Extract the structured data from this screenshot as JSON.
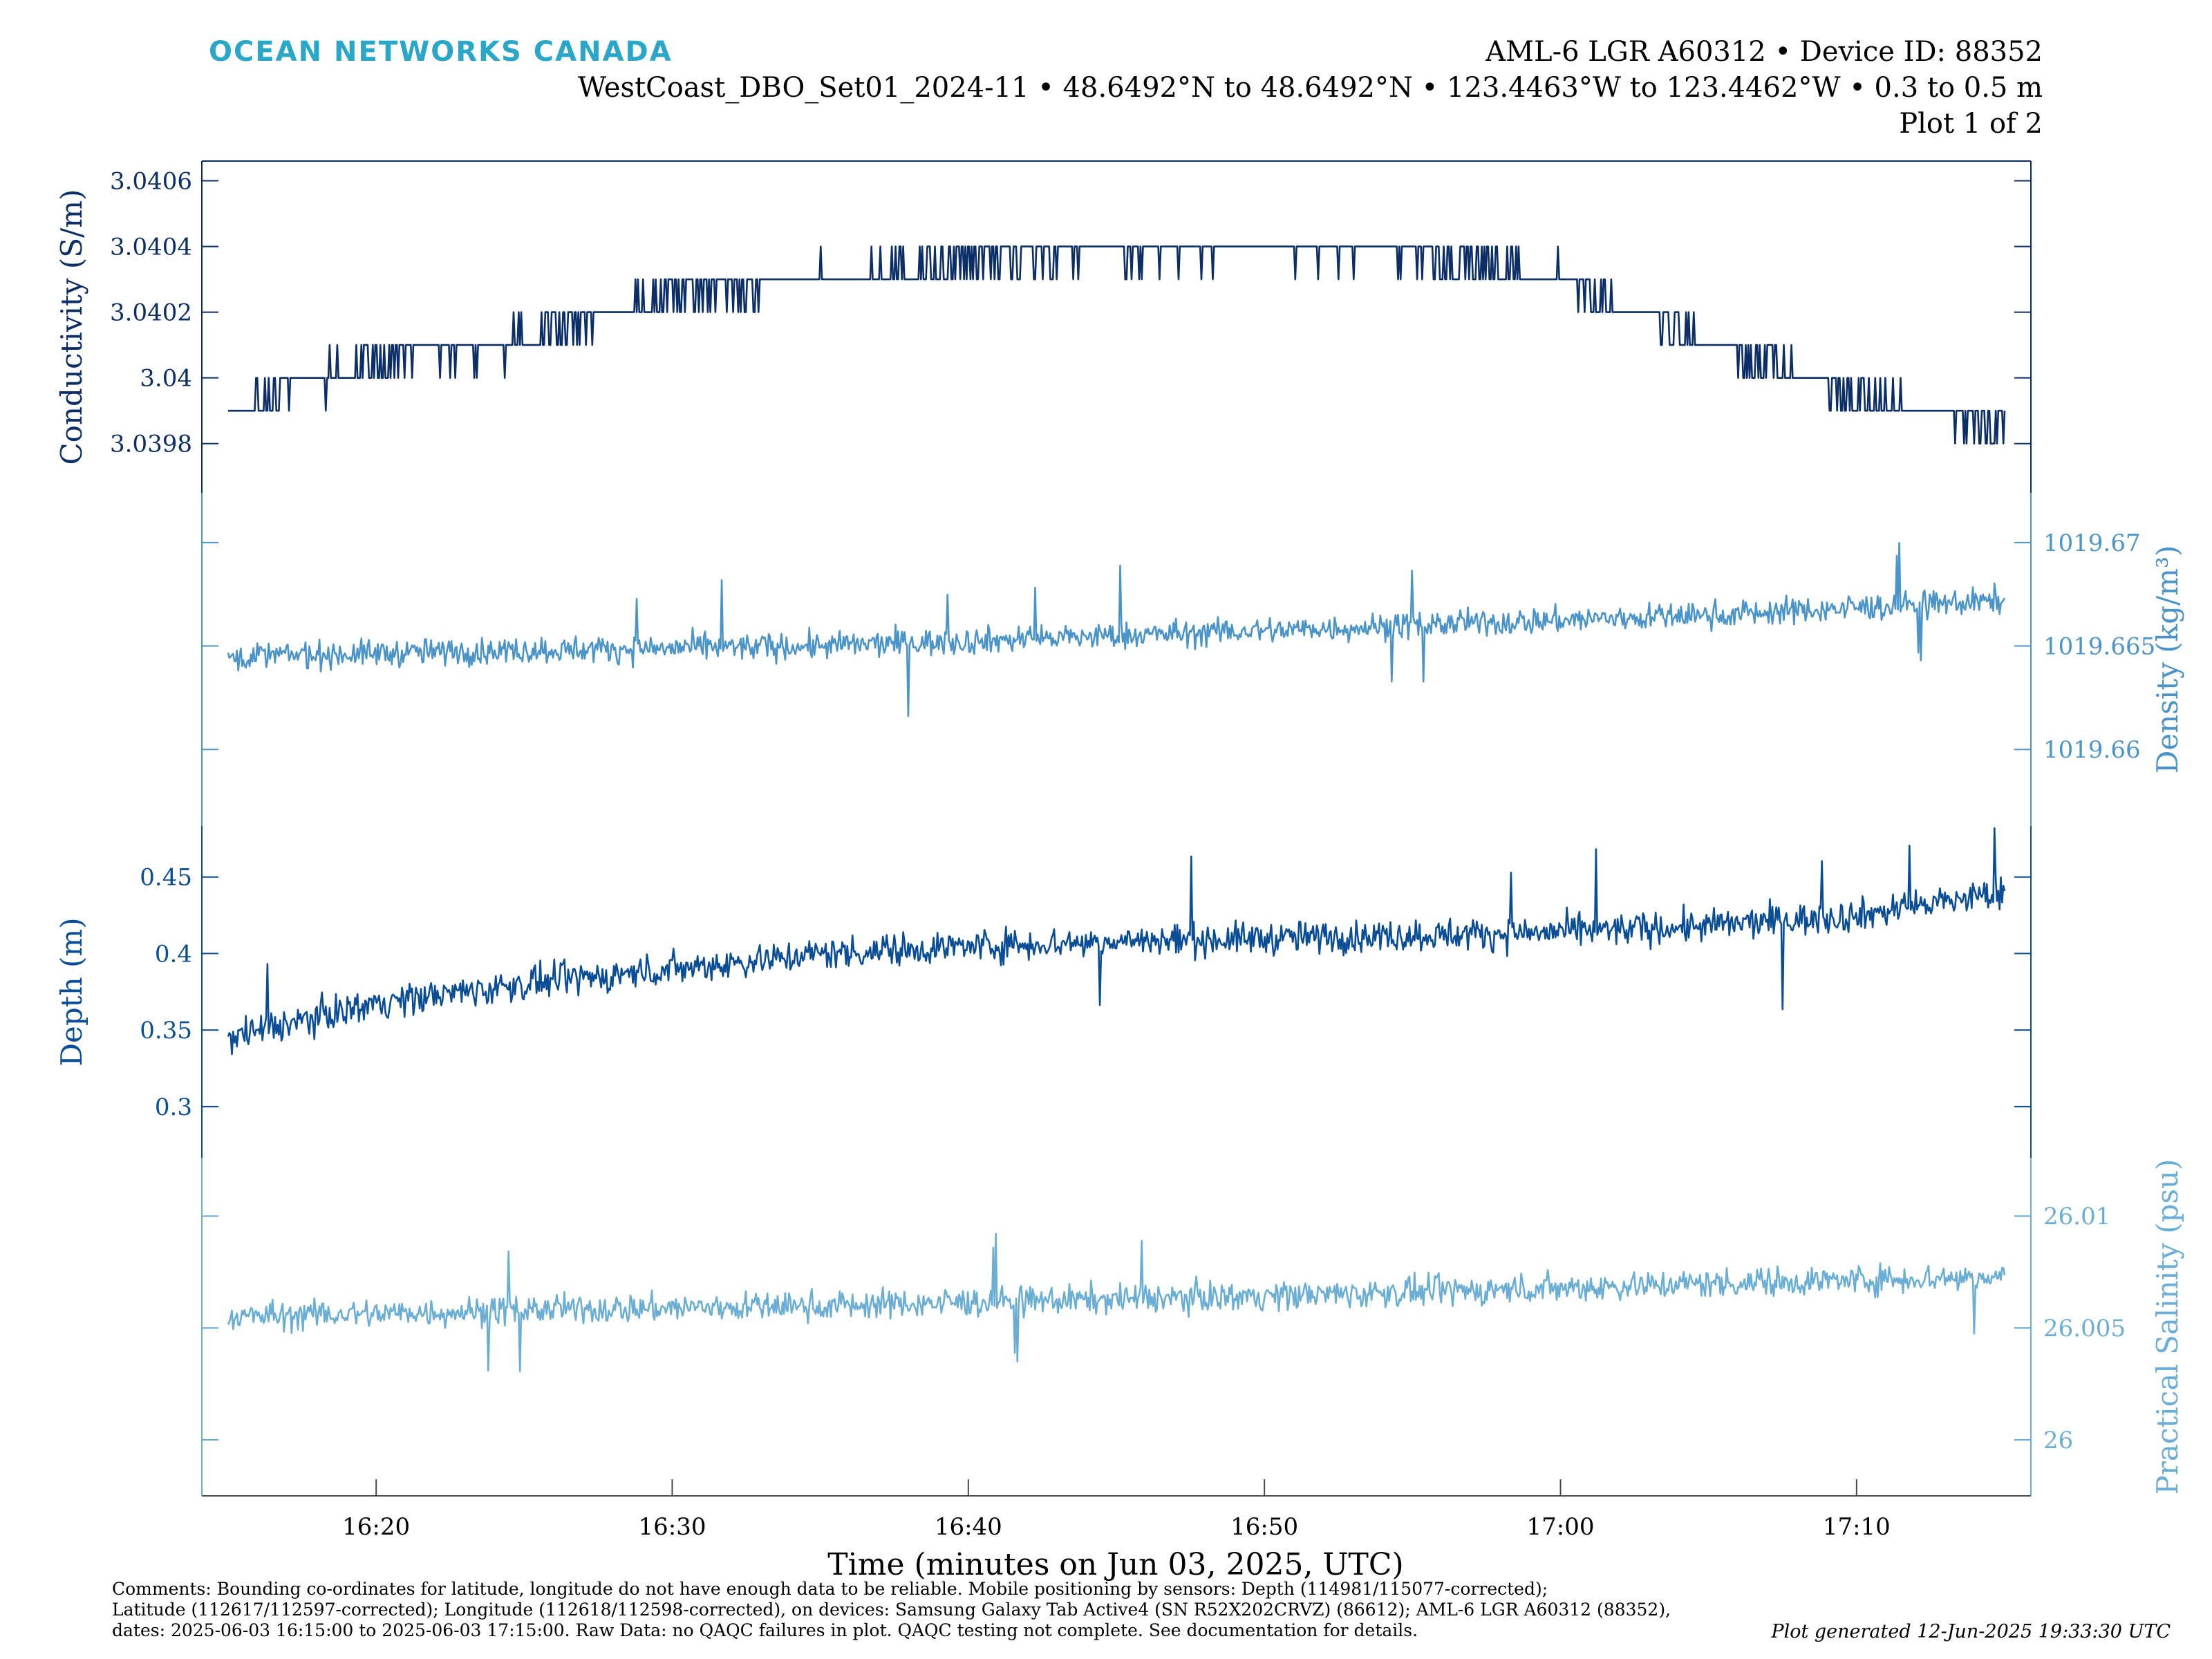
{
  "header": {
    "brand": "OCEAN NETWORKS CANADA",
    "device_line": "AML-6 LGR A60312 • Device ID: 88352",
    "location_line": "WestCoast_DBO_Set01_2024-11 • 48.6492°N to 48.6492°N • 123.4463°W to 123.4462°W • 0.3 to 0.5 m",
    "plot_line": "Plot 1 of 2"
  },
  "footer": {
    "comments": [
      "Comments: Bounding co-ordinates for latitude, longitude do not have enough data to be reliable. Mobile positioning by sensors: Depth (114981/115077-corrected);",
      "Latitude (112617/112597-corrected); Longitude (112618/112598-corrected), on devices: Samsung Galaxy Tab Active4 (SN R52X202CRVZ) (86612); AML-6 LGR A60312 (88352),",
      "dates: 2025-06-03 16:15:00 to 2025-06-03 17:15:00. Raw Data: no QAQC failures in plot. QAQC testing not complete. See documentation for details."
    ],
    "generated": "Plot generated 12-Jun-2025 19:33:30 UTC"
  },
  "colors": {
    "conductivity": "#0b2e66",
    "density": "#4a94c9",
    "depth": "#0a4d97",
    "salinity": "#6aaed6",
    "brand": "#2aa6c8"
  },
  "chart_data": {
    "type": "line",
    "xlabel": "Time (minutes on Jun 03, 2025, UTC)",
    "xlim": [
      "16:15",
      "17:15"
    ],
    "x_ticks": [
      "16:20",
      "16:30",
      "16:40",
      "16:50",
      "17:00",
      "17:10"
    ],
    "grid": false,
    "legend": "none",
    "series": [
      {
        "name": "Conductivity",
        "ylabel": "Conductivity (S/m)",
        "axis_side": "left",
        "ylim": [
          3.03965,
          3.04066
        ],
        "y_ticks": [
          "3.0398",
          "3.04",
          "3.0402",
          "3.0404",
          "3.0406"
        ],
        "trend": [
          [
            "16:15",
            3.0399
          ],
          [
            "16:20",
            3.04005
          ],
          [
            "16:25",
            3.04012
          ],
          [
            "16:30",
            3.04025
          ],
          [
            "16:35",
            3.0403
          ],
          [
            "16:40",
            3.04035
          ],
          [
            "16:45",
            3.04038
          ],
          [
            "16:50",
            3.0404
          ],
          [
            "16:55",
            3.04038
          ],
          [
            "17:00",
            3.0403
          ],
          [
            "17:05",
            3.0401
          ],
          [
            "17:10",
            3.03995
          ],
          [
            "17:15",
            3.03985
          ]
        ],
        "noise": 6e-05,
        "spike_min": 3.03965,
        "spike_max": 3.04065
      },
      {
        "name": "Density",
        "ylabel": "Density (kg/m³)",
        "axis_side": "right",
        "ylim": [
          1019.6563,
          1019.6724
        ],
        "y_ticks": [
          "1019.66",
          "1019.665",
          "1019.67"
        ],
        "trend": [
          [
            "16:15",
            1019.6645
          ],
          [
            "16:25",
            1019.6648
          ],
          [
            "16:35",
            1019.665
          ],
          [
            "16:45",
            1019.6655
          ],
          [
            "16:55",
            1019.666
          ],
          [
            "17:05",
            1019.6665
          ],
          [
            "17:15",
            1019.6672
          ]
        ],
        "noise": 0.0011,
        "spike_min": 1019.6578,
        "spike_max": 1019.6722
      },
      {
        "name": "Depth",
        "ylabel": "Depth (m)",
        "axis_side": "left",
        "ylim": [
          0.2665,
          0.4833
        ],
        "y_ticks": [
          "0.3",
          "0.35",
          "0.4",
          "0.45"
        ],
        "trend": [
          [
            "16:15",
            0.345
          ],
          [
            "16:20",
            0.368
          ],
          [
            "16:25",
            0.38
          ],
          [
            "16:30",
            0.39
          ],
          [
            "16:35",
            0.4
          ],
          [
            "16:40",
            0.405
          ],
          [
            "16:45",
            0.408
          ],
          [
            "16:50",
            0.41
          ],
          [
            "16:55",
            0.412
          ],
          [
            "17:00",
            0.414
          ],
          [
            "17:05",
            0.418
          ],
          [
            "17:10",
            0.425
          ],
          [
            "17:15",
            0.44
          ]
        ],
        "noise": 0.018,
        "spike_min": 0.3,
        "spike_max": 0.482
      },
      {
        "name": "Practical Salinity",
        "ylabel": "Practical Salinity (psu)",
        "axis_side": "right",
        "ylim": [
          25.9975,
          26.0126
        ],
        "y_ticks": [
          "26",
          "26.005",
          "26.01"
        ],
        "trend": [
          [
            "16:15",
            26.0055
          ],
          [
            "16:25",
            26.0058
          ],
          [
            "16:35",
            26.006
          ],
          [
            "16:45",
            26.0063
          ],
          [
            "16:55",
            26.0066
          ],
          [
            "17:05",
            26.007
          ],
          [
            "17:15",
            26.0073
          ]
        ],
        "noise": 0.0011,
        "spike_min": 25.9977,
        "spike_max": 26.012
      }
    ]
  }
}
